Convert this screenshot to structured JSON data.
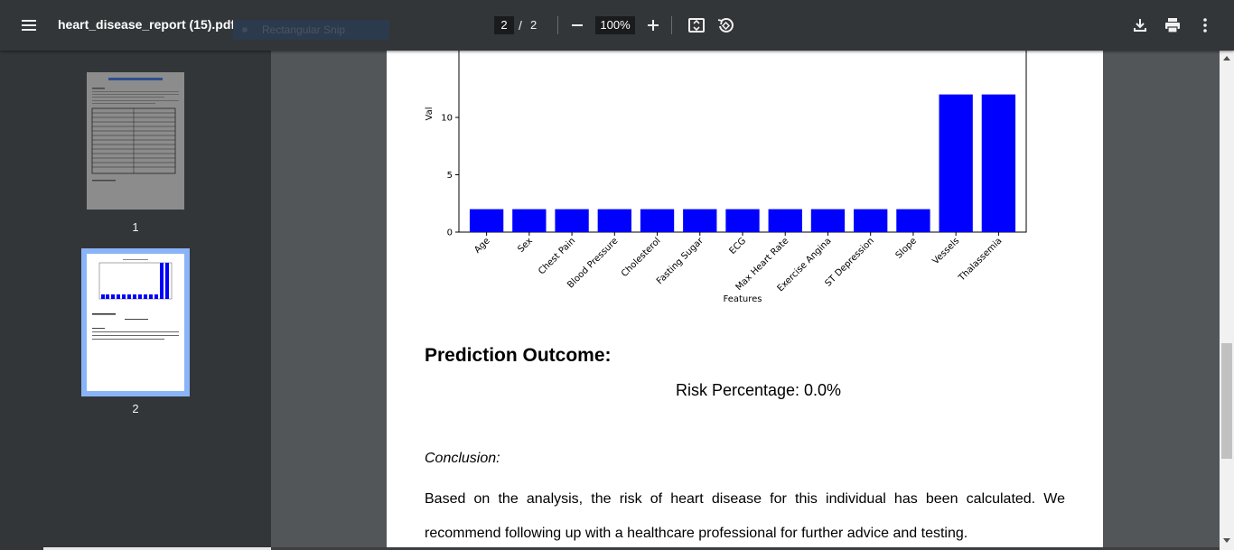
{
  "toolbar": {
    "filename": "heart_disease_report (15).pdf",
    "snip_label": "Rectangular Snip",
    "current_page": "2",
    "separator": "/",
    "total_pages": "2",
    "zoom": "100%",
    "icons": [
      "menu-icon",
      "minus-icon",
      "plus-icon",
      "fit-page-icon",
      "rotate-icon",
      "download-icon",
      "print-icon",
      "more-vert-icon"
    ]
  },
  "sidebar": {
    "thumbnails": [
      {
        "label": "1",
        "selected": false
      },
      {
        "label": "2",
        "selected": true
      }
    ],
    "accent_color": "#8ab4f8"
  },
  "chart_data": {
    "type": "bar",
    "categories": [
      "Age",
      "Sex",
      "Chest Pain",
      "Blood Pressure",
      "Cholesterol",
      "Fasting Sugar",
      "ECG",
      "Max Heart Rate",
      "Exercise Angina",
      "ST Depression",
      "Slope",
      "Vessels",
      "Thalassemia"
    ],
    "values": [
      2,
      2,
      2,
      2,
      2,
      2,
      2,
      2,
      2,
      2,
      2,
      12,
      12
    ],
    "xlabel": "Features",
    "ylabel": "Val",
    "yticks": [
      "0",
      "5",
      "10"
    ],
    "ylim": [
      0,
      12
    ],
    "bar_color": "#0000ff"
  },
  "report": {
    "outcome_heading": "Prediction Outcome:",
    "risk_text": "Risk Percentage: 0.0%",
    "conclusion_label": "Conclusion:",
    "conclusion_text": "Based on the analysis, the risk of heart disease for this individual has been calculated. We recommend following up with a healthcare professional for further advice and testing."
  }
}
